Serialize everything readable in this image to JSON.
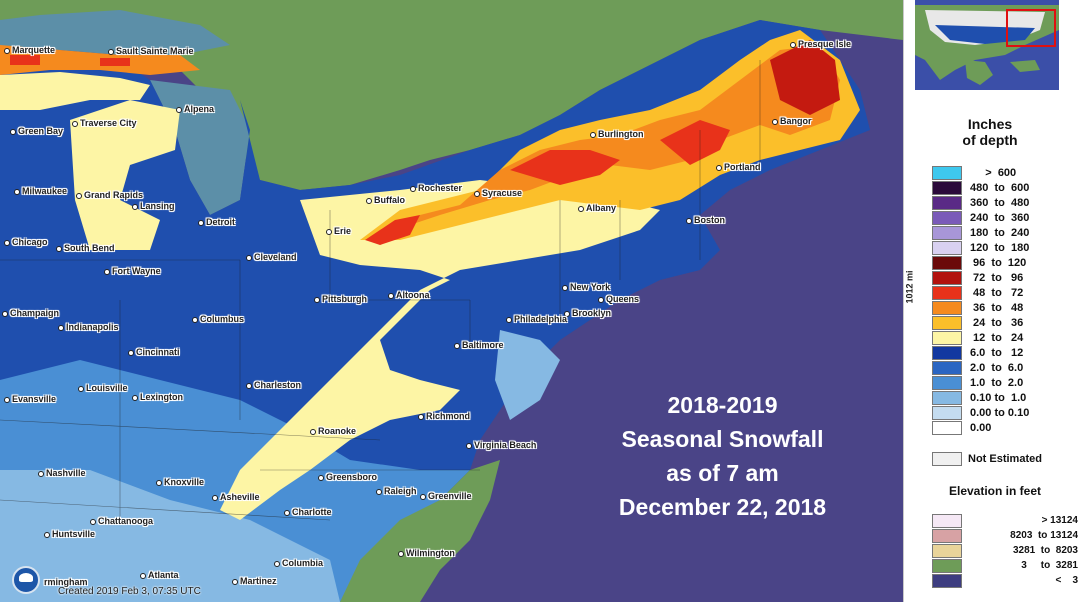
{
  "map": {
    "cities": [
      {
        "name": "Marquette"
      },
      {
        "name": "Sault Sainte Marie"
      },
      {
        "name": "Presque Isle"
      },
      {
        "name": "Alpena"
      },
      {
        "name": "Traverse City"
      },
      {
        "name": "Green Bay"
      },
      {
        "name": "Bangor"
      },
      {
        "name": "Burlington"
      },
      {
        "name": "Portland"
      },
      {
        "name": "Milwaukee"
      },
      {
        "name": "Grand Rapids"
      },
      {
        "name": "Lansing"
      },
      {
        "name": "Rochester"
      },
      {
        "name": "Syracuse"
      },
      {
        "name": "Buffalo"
      },
      {
        "name": "Albany"
      },
      {
        "name": "Detroit"
      },
      {
        "name": "Boston"
      },
      {
        "name": "Chicago"
      },
      {
        "name": "South Bend"
      },
      {
        "name": "Erie"
      },
      {
        "name": "Cleveland"
      },
      {
        "name": "Fort Wayne"
      },
      {
        "name": "New York"
      },
      {
        "name": "Queens"
      },
      {
        "name": "Pittsburgh"
      },
      {
        "name": "Altoona"
      },
      {
        "name": "Brooklyn"
      },
      {
        "name": "Champaign"
      },
      {
        "name": "Indianapolis"
      },
      {
        "name": "Columbus"
      },
      {
        "name": "Philadelphia"
      },
      {
        "name": "Cincinnati"
      },
      {
        "name": "Baltimore"
      },
      {
        "name": "Louisville"
      },
      {
        "name": "Charleston"
      },
      {
        "name": "Evansville"
      },
      {
        "name": "Lexington"
      },
      {
        "name": "Richmond"
      },
      {
        "name": "Roanoke"
      },
      {
        "name": "Virginia Beach"
      },
      {
        "name": "Nashville"
      },
      {
        "name": "Knoxville"
      },
      {
        "name": "Greensboro"
      },
      {
        "name": "Raleigh"
      },
      {
        "name": "Asheville"
      },
      {
        "name": "Greenville"
      },
      {
        "name": "Chattanooga"
      },
      {
        "name": "Charlotte"
      },
      {
        "name": "Huntsville"
      },
      {
        "name": "Wilmington"
      },
      {
        "name": "Columbia"
      },
      {
        "name": "rmingham"
      },
      {
        "name": "Atlanta"
      },
      {
        "name": "Martinez"
      }
    ],
    "overlay_lines": [
      "2018-2019",
      "Seasonal Snowfall",
      "as of 7 am",
      "December 22, 2018"
    ],
    "footer": "Created 2019 Feb 3, 07:35 UTC",
    "scale_label": "1012 mi"
  },
  "legend": {
    "title_lines": [
      "Inches",
      "of depth"
    ],
    "rows": [
      {
        "label": "     >  600",
        "color": "#3ec8ee"
      },
      {
        "label": "480  to  600",
        "color": "#2b0a3a"
      },
      {
        "label": "360  to  480",
        "color": "#5a2a86"
      },
      {
        "label": "240  to  360",
        "color": "#7a5ab8"
      },
      {
        "label": "180  to  240",
        "color": "#a896d8"
      },
      {
        "label": "120  to  180",
        "color": "#d9d1f1"
      },
      {
        "label": " 96  to  120",
        "color": "#6b0a0a"
      },
      {
        "label": " 72  to   96",
        "color": "#b2120e"
      },
      {
        "label": " 48  to   72",
        "color": "#e8321a"
      },
      {
        "label": " 36  to   48",
        "color": "#f58a1e"
      },
      {
        "label": " 24  to   36",
        "color": "#fbbf2a"
      },
      {
        "label": " 12  to   24",
        "color": "#fdf5a5"
      },
      {
        "label": "6.0  to   12",
        "color": "#1238a0"
      },
      {
        "label": "2.0  to  6.0",
        "color": "#2a65c2"
      },
      {
        "label": "1.0  to  2.0",
        "color": "#4a8fd4"
      },
      {
        "label": "0.10 to  1.0",
        "color": "#86b9e3"
      },
      {
        "label": "0.00 to 0.10",
        "color": "#c4dcf0"
      },
      {
        "label": "0.00",
        "color": "#ffffff"
      }
    ],
    "not_estimated": "Not Estimated",
    "elevation_title": "Elevation in feet",
    "elevation_rows": [
      {
        "label": "> 13124",
        "color": "#f5e8f5"
      },
      {
        "label": "8203  to 13124",
        "color": "#d7a2a4"
      },
      {
        "label": "3281  to  8203",
        "color": "#e9d49a"
      },
      {
        "label": "3     to  3281",
        "color": "#6e9c58"
      },
      {
        "label": "<    3",
        "color": "#3d3d80"
      }
    ]
  }
}
